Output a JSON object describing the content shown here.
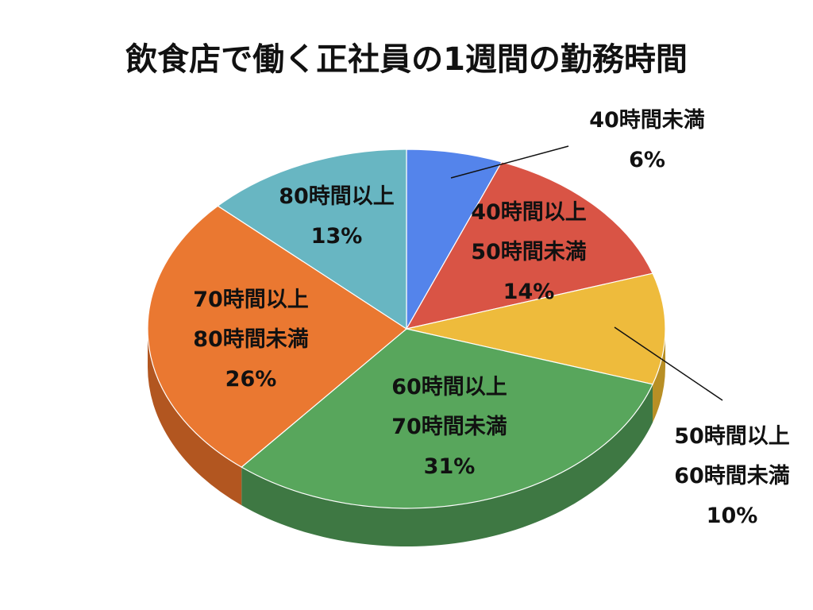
{
  "chart_data": {
    "type": "pie",
    "title": "飲食店で働く正社員の1週間の勤務時間",
    "slices": [
      {
        "label_lines": [
          "40時間未満"
        ],
        "percent_label": "6%",
        "value": 6,
        "color": "#5484eb",
        "side_color": "#3d64b4"
      },
      {
        "label_lines": [
          "40時間以上",
          "50時間未満"
        ],
        "percent_label": "14%",
        "value": 14,
        "color": "#d95445",
        "side_color": "#a63d31"
      },
      {
        "label_lines": [
          "50時間以上",
          "60時間未満"
        ],
        "percent_label": "10%",
        "value": 10,
        "color": "#eebb3c",
        "side_color": "#b88f25"
      },
      {
        "label_lines": [
          "60時間以上",
          "70時間未満"
        ],
        "percent_label": "31%",
        "value": 31,
        "color": "#58a65c",
        "side_color": "#3e7843"
      },
      {
        "label_lines": [
          "70時間以上",
          "80時間未満"
        ],
        "percent_label": "26%",
        "value": 26,
        "color": "#ea7831",
        "side_color": "#b25620"
      },
      {
        "label_lines": [
          "80時間以上"
        ],
        "percent_label": "13%",
        "value": 13,
        "color": "#68b6c2",
        "side_color": "#4c8f99"
      }
    ],
    "legend": "none",
    "style": "3d-tilted"
  }
}
